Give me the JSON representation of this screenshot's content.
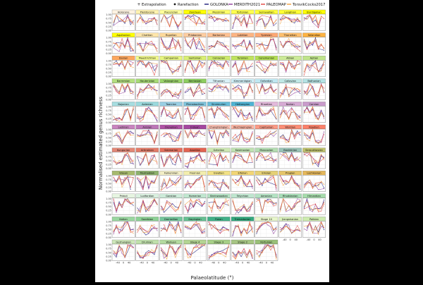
{
  "chart_data": {
    "type": "line",
    "subtype": "small-multiples",
    "xlabel": "Palaeolatitude (°)",
    "ylabel": "Normalised estimated genus richness",
    "x_ticks": [
      "-40",
      "0",
      "40"
    ],
    "y_ticks": [
      "0.00",
      "0.25",
      "0.50",
      "0.75",
      "1.00"
    ],
    "xlim": [
      -80,
      80
    ],
    "ylim": [
      0,
      1
    ],
    "grid": true,
    "legend_position": "top",
    "legend": {
      "markers": [
        {
          "label": "Extrapolation",
          "shape": "cross"
        },
        {
          "label": "Rarefaction",
          "shape": "dot"
        }
      ],
      "lines": [
        {
          "label": "GOLONKA",
          "color": "#1b1b7a"
        },
        {
          "label": "MERDITH2021",
          "color": "#8e3a9a"
        },
        {
          "label": "PALEOMAP",
          "color": "#e0433f"
        },
        {
          "label": "TorsvikCocks2017",
          "color": "#f2a03a"
        }
      ]
    },
    "latitudes": [
      -70,
      -50,
      -30,
      -10,
      10,
      30,
      50,
      70
    ],
    "rows": [
      [
        "Holocene",
        "Pleistocene",
        "Piacenzian",
        "Zanclean",
        "Messinian",
        "Tortonian",
        "Serravallian",
        "Langhian",
        "Burdigalian"
      ],
      [
        "Aquitanian",
        "Chattian",
        "Rupelian",
        "Priabonian",
        "Bartonian",
        "Lutetian",
        "Ypresian",
        "Thanetian",
        "Selandian"
      ],
      [
        "Danian",
        "Maastrichtian",
        "Campanian",
        "Santonian",
        "Coniacian",
        "Turonian",
        "Cenomanian",
        "Albian",
        "Aptian"
      ],
      [
        "Barremian",
        "Hauterivian",
        "Valanginian",
        "Berriasian",
        "Tithonian",
        "Kimmeridgian",
        "Oxfordian",
        "Callovian",
        "Bathonian"
      ],
      [
        "Bajocian",
        "Aalenian",
        "Toarcian",
        "Pliensbachian",
        "Sinemurian",
        "Hettangian",
        "Rhaetian",
        "Norian",
        "Carnian"
      ],
      [
        "Ladinian",
        "Anisian",
        "Olenekian",
        "Induan",
        "Changhsingian",
        "Wuchiapingian",
        "Capitanian",
        "Wordian",
        "Roadian"
      ],
      [
        "Kungurian",
        "Artinskian",
        "Sakmarian",
        "Asselian",
        "Gzhelian",
        "Kasimovian",
        "Moscovian",
        "Bashkirian",
        "Serpukhovian"
      ],
      [
        "Visean",
        "Tournaisian",
        "Famennian",
        "Frasnian",
        "Givetian",
        "Eifelian",
        "Emsian",
        "Pragian",
        "Lochkovian"
      ],
      [
        "Pridoli",
        "Ludfordian",
        "Gorstian",
        "Homerian",
        "Sheinwoodian",
        "Telychian",
        "Aeronian",
        "Rhuddanian",
        "Hirnantian"
      ],
      [
        "Katian",
        "Sandbian",
        "Darriwilian",
        "Dapingian",
        "Floian",
        "Tremadocian",
        "Stage 10",
        "Jiangshanian",
        "Paibian"
      ],
      [
        "Guzhangian",
        "Drumian",
        "Wuliuan",
        "Stage 4",
        "Stage 3",
        "Stage 2",
        "Fortunian"
      ]
    ],
    "strip_colors": [
      [
        "#fdf2e0",
        "#fff2ae",
        "#ffff99",
        "#ffff00",
        "#ffff66",
        "#ffff4d",
        "#ffff3a",
        "#ffff33",
        "#ffff00"
      ],
      [
        "#ffff00",
        "#fee6aa",
        "#fed99a",
        "#fdcda1",
        "#fdc091",
        "#fcb482",
        "#fca773",
        "#fdbf6f",
        "#feb342"
      ],
      [
        "#fda75f",
        "#f2fa8c",
        "#e6f47f",
        "#d9ef74",
        "#cce96a",
        "#bfe35d",
        "#b3de53",
        "#ccea97",
        "#bfe48a"
      ],
      [
        "#b3df7f",
        "#a6d975",
        "#99d36a",
        "#8ccd60",
        "#d9f1f7",
        "#ccecf4",
        "#bfe7f1",
        "#bfe7e5",
        "#b3e2e3"
      ],
      [
        "#a6dde0",
        "#9ad9dd",
        "#99cee3",
        "#80c5dd",
        "#67bcd8",
        "#4eb3d3",
        "#e3b9db",
        "#d6aad3",
        "#c99bcb"
      ],
      [
        "#c983bf",
        "#bc75b7",
        "#b051a5",
        "#a4469f",
        "#fcc0b2",
        "#fcb4a2",
        "#fb9a85",
        "#fb8d76",
        "#fb8069"
      ],
      [
        "#e38776",
        "#e37b68",
        "#e36f5c",
        "#e36350",
        "#cce7b1",
        "#bfe2b1",
        "#b3ddb1",
        "#99c2b5",
        "#bfc26b"
      ],
      [
        "#a6b96c",
        "#8cb06c",
        "#f2edc5",
        "#f2edad",
        "#f1e185",
        "#f1d576",
        "#e5d075",
        "#e5c468",
        "#e5b75a"
      ],
      [
        "#e6f5e1",
        "#d9f0df",
        "#cdebd9",
        "#c0e6cf",
        "#b3e1c2",
        "#bfe6cf",
        "#b3e1c2",
        "#a6dcb5",
        "#a6dbab"
      ],
      [
        "#99d69f",
        "#8cd094",
        "#74c69c",
        "#66c092",
        "#41b087",
        "#33a97e",
        "#e6f5c9",
        "#d9f0bb",
        "#ccebae"
      ],
      [
        "#cce6b8",
        "#bfe0ab",
        "#b3da9f",
        "#b3d492",
        "#a6cf86",
        "#a6c583",
        "#99c078"
      ]
    ],
    "series": [
      {
        "name": "GOLONKA",
        "color": "#1b1b7a"
      },
      {
        "name": "MERDITH2021",
        "color": "#8e3a9a"
      },
      {
        "name": "PALEOMAP",
        "color": "#e0433f"
      },
      {
        "name": "TorsvikCocks2017",
        "color": "#f2a03a"
      }
    ]
  }
}
